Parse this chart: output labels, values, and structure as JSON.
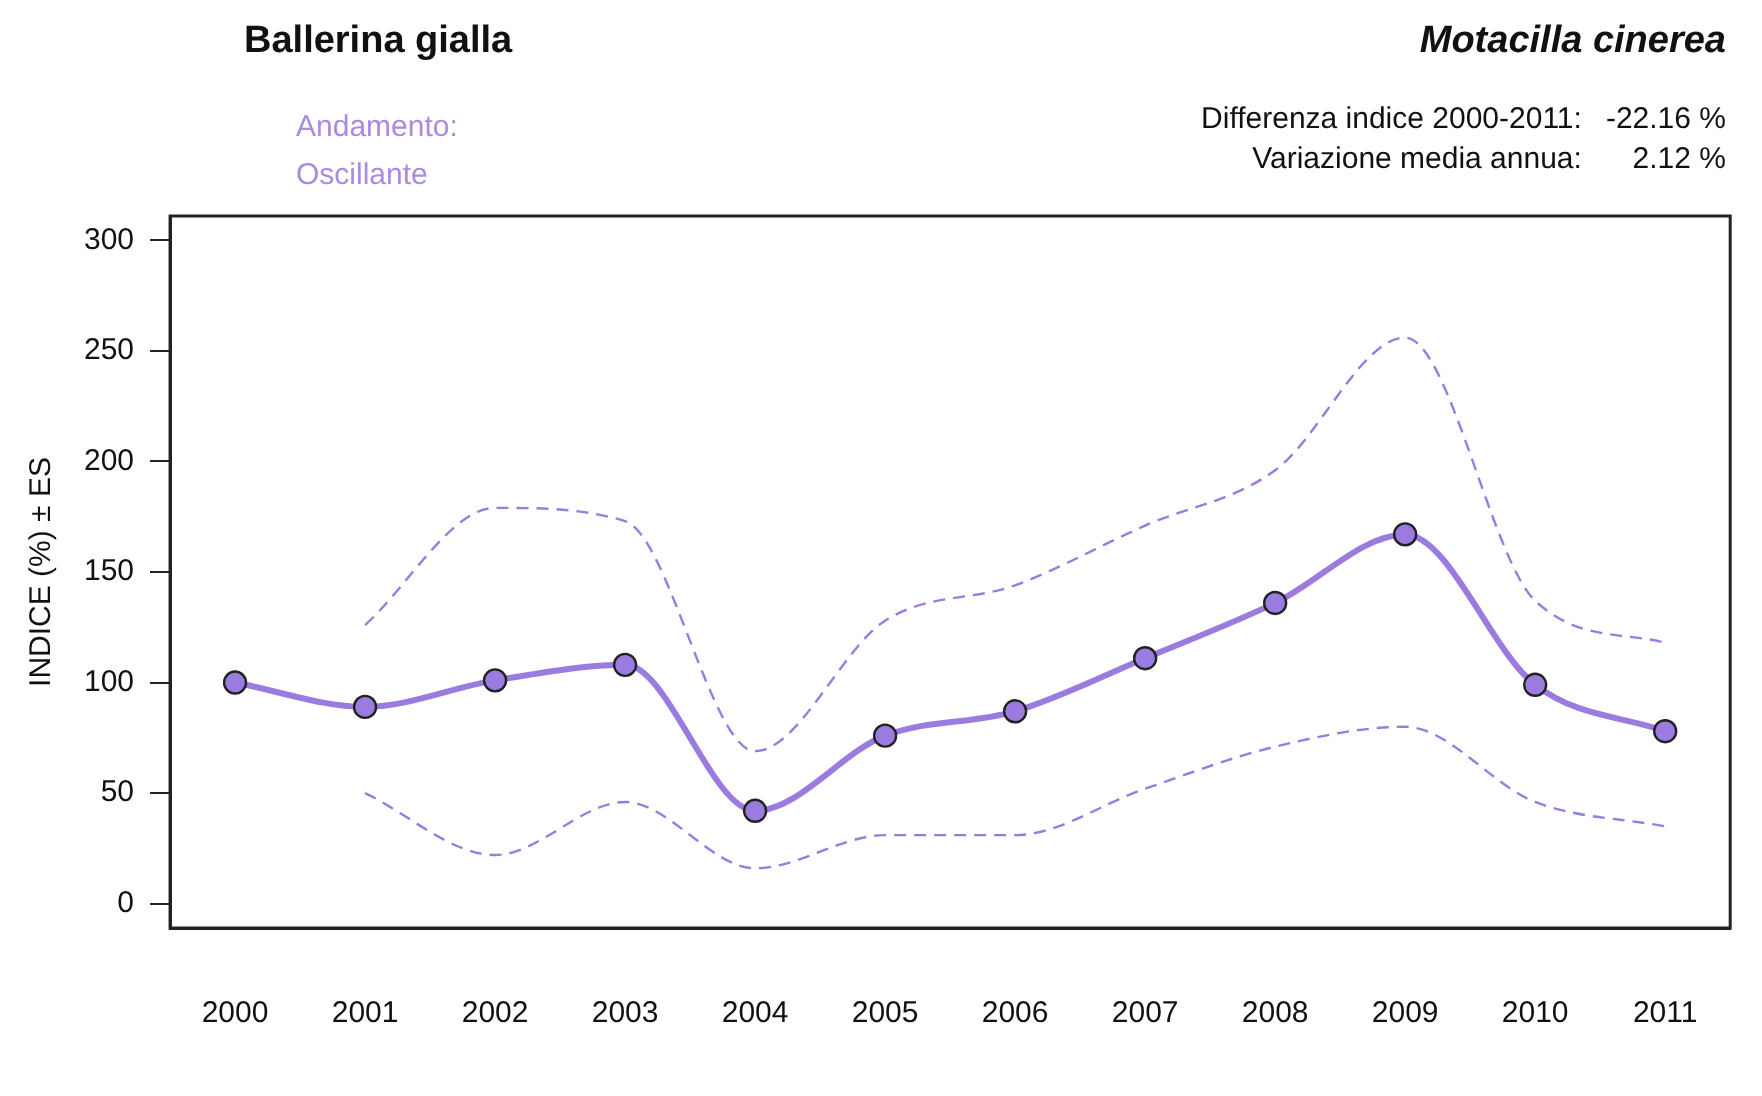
{
  "chart_data": {
    "type": "line",
    "title": "Ballerina gialla",
    "subtitle": "Motacilla cinerea",
    "ylabel": "INDICE (%) ± ES",
    "annotations": [
      "Andamento:",
      "Oscillante",
      "Differenza indice 2000-2011:",
      "-22.16 %",
      "Variazione media annua:",
      "2.12 %"
    ],
    "categories": [
      "2000",
      "2001",
      "2002",
      "2003",
      "2004",
      "2005",
      "2006",
      "2007",
      "2008",
      "2009",
      "2010",
      "2011"
    ],
    "series": [
      {
        "color": "#9b7be0",
        "values": [
          100,
          89,
          101,
          108,
          42,
          76,
          87,
          111,
          136,
          167,
          99,
          78
        ],
        "marker": "circle",
        "line_style": "solid"
      },
      {
        "color": "#9b7be0",
        "values": [
          null,
          126,
          179,
          173,
          69,
          128,
          144,
          171,
          196,
          256,
          137,
          118
        ],
        "marker": "none",
        "line_style": "dashed"
      },
      {
        "color": "#9b7be0",
        "values": [
          null,
          50,
          22,
          46,
          16,
          31,
          31,
          52,
          71,
          80,
          46,
          35
        ],
        "marker": "none",
        "line_style": "dashed"
      }
    ],
    "ylim": [
      -11,
      311
    ],
    "yticks": [
      0,
      50,
      100,
      150,
      200,
      250,
      300
    ],
    "grid": false,
    "legend": false
  }
}
